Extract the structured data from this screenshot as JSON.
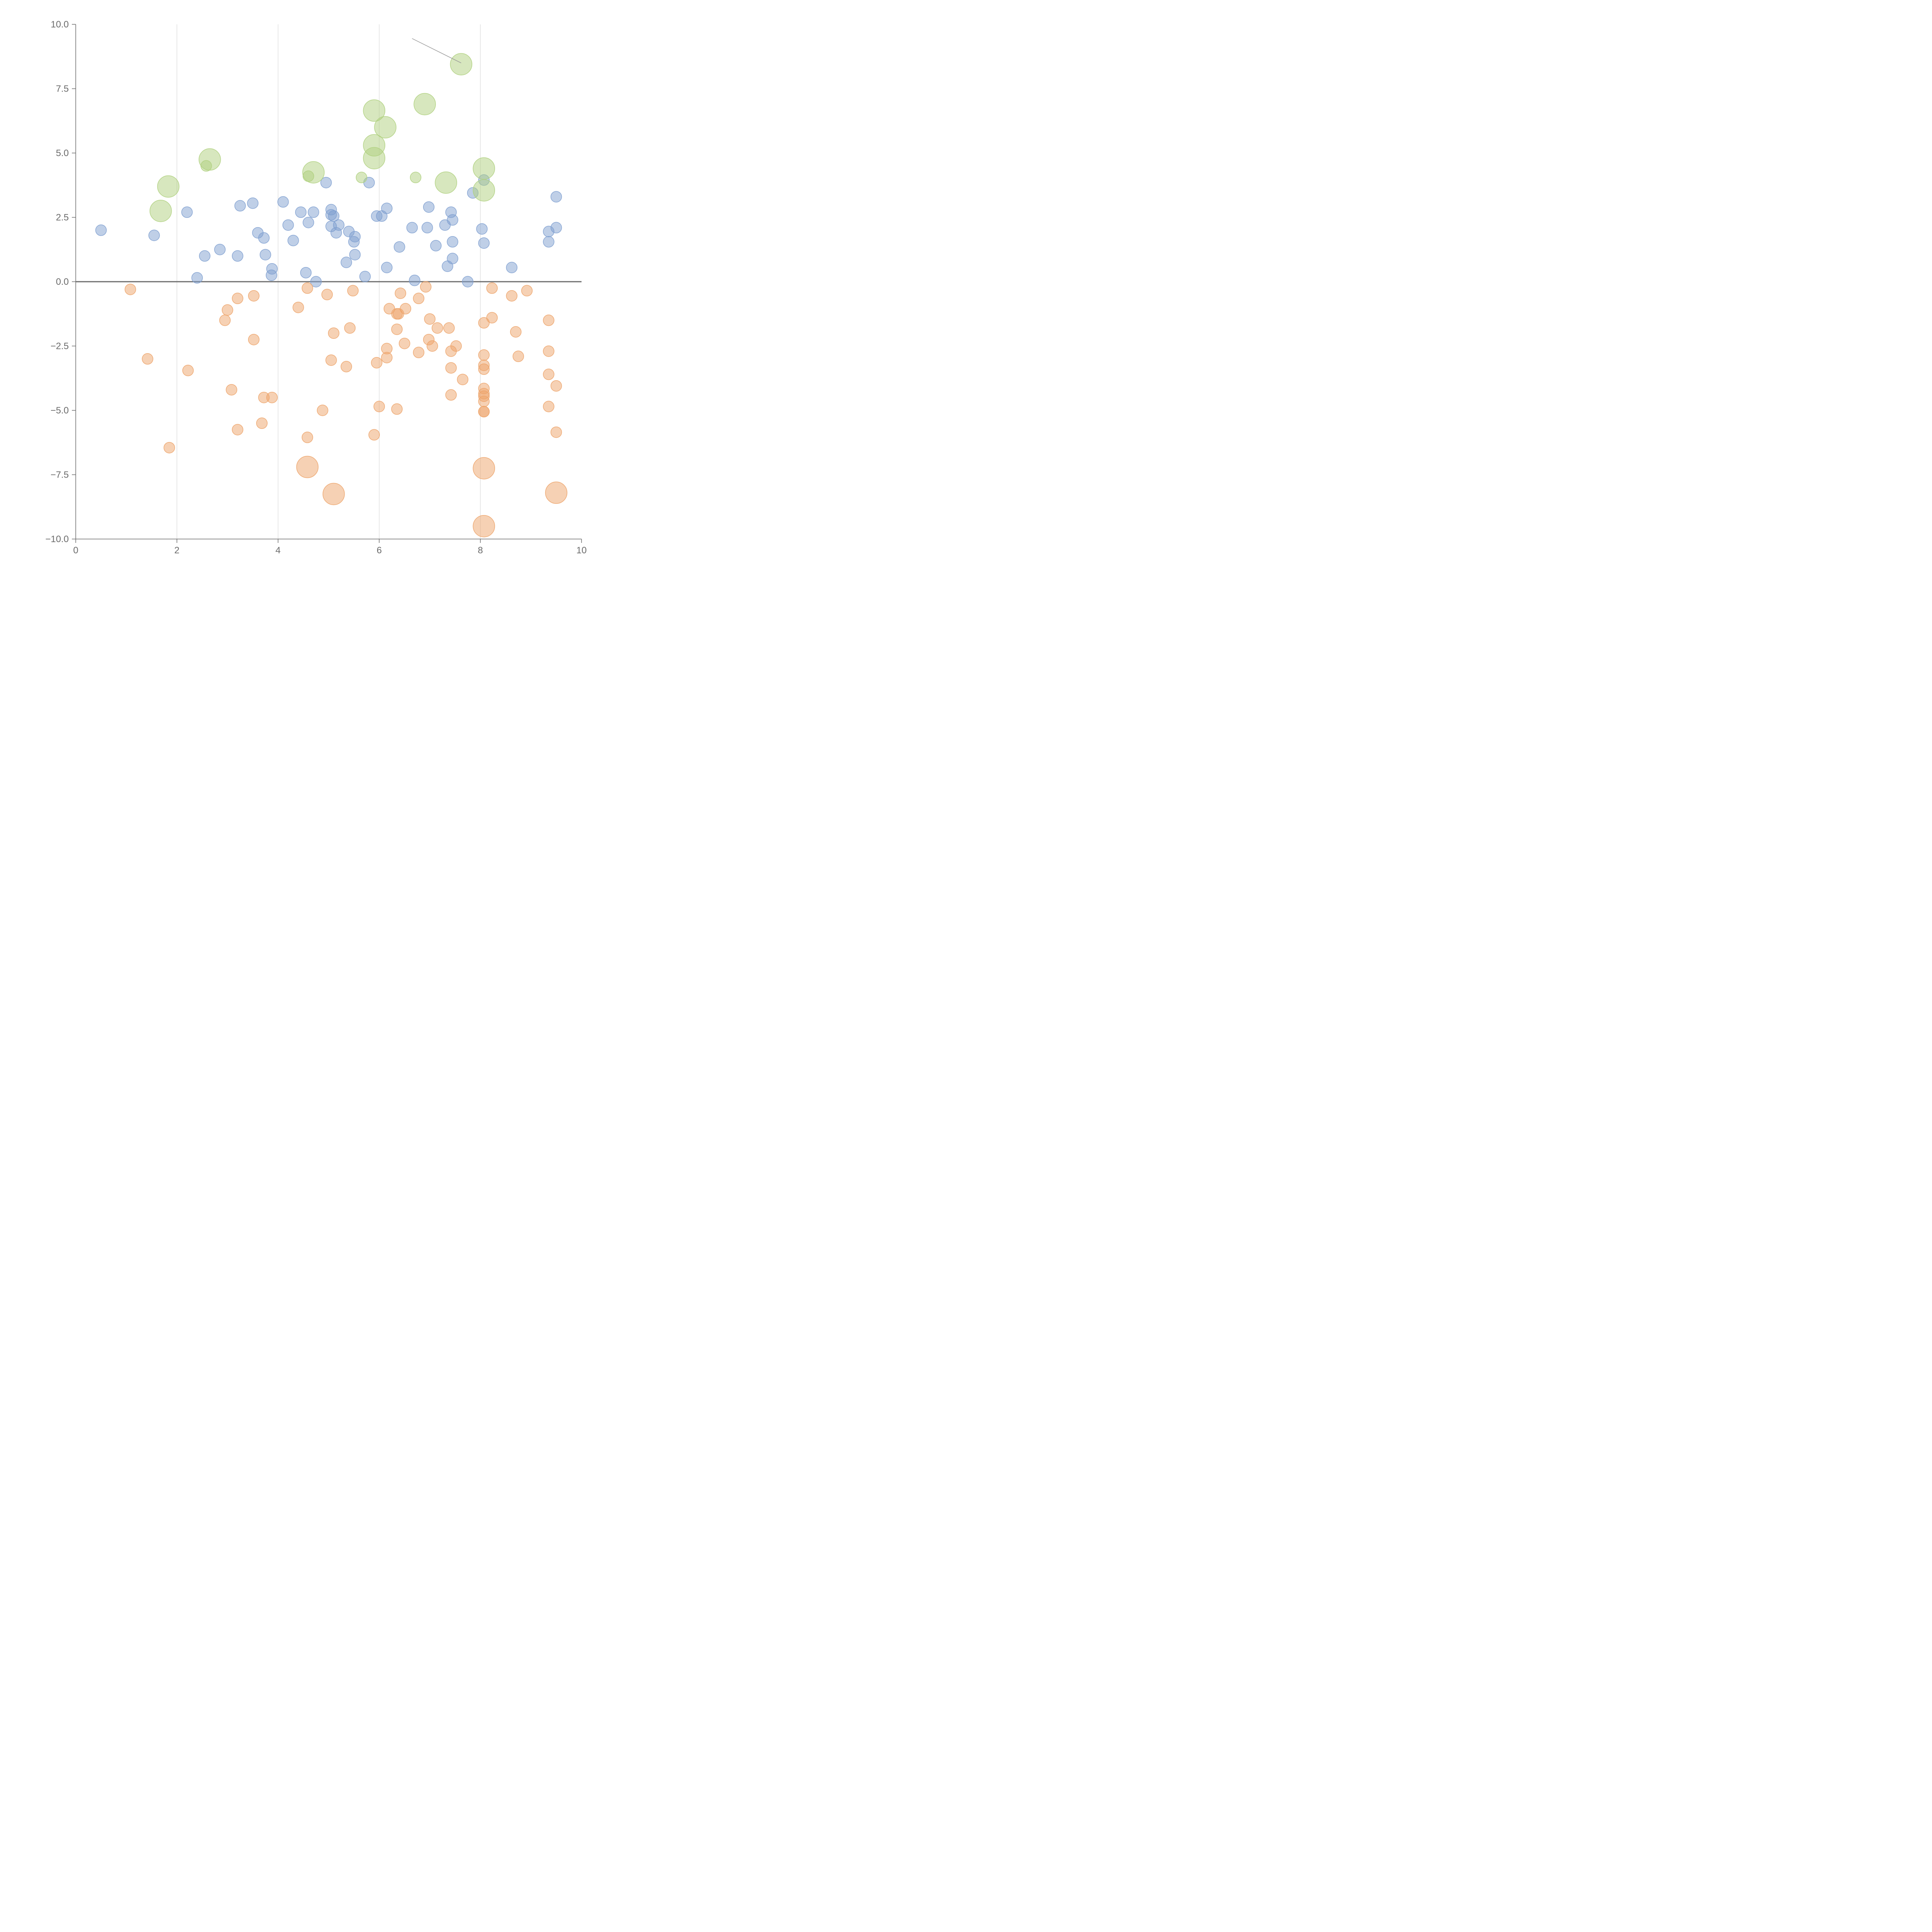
{
  "chart_data": {
    "type": "scatter",
    "title": "",
    "xlabel": "",
    "ylabel": "",
    "xlim": [
      0,
      10
    ],
    "ylim": [
      -10,
      10
    ],
    "x_ticks": [
      "0",
      "2",
      "4",
      "6",
      "8",
      "10"
    ],
    "y_ticks": [
      "10.0",
      "7.5",
      "5.0",
      "2.5",
      "0.0",
      "−2.5",
      "−5.0",
      "−7.5",
      "−10.0"
    ],
    "x_tick_values": [
      0,
      2,
      4,
      6,
      8,
      10
    ],
    "y_tick_values": [
      10,
      7.5,
      5,
      2.5,
      0,
      -2.5,
      -5,
      -7.5,
      -10
    ],
    "vertical_grid": [
      2,
      4,
      6,
      8
    ],
    "zero_line": 0,
    "colors": {
      "blue": "#7fa0d0",
      "orange": "#eda46a",
      "green": "#afd07e"
    },
    "series": [
      {
        "name": "blue",
        "color": "#7fa0d0",
        "points": [
          [
            0.5,
            2.0,
            1
          ],
          [
            1.55,
            1.8,
            1
          ],
          [
            2.2,
            2.7,
            1
          ],
          [
            2.4,
            0.15,
            1
          ],
          [
            2.55,
            1.0,
            1
          ],
          [
            2.85,
            1.25,
            1
          ],
          [
            3.2,
            1.0,
            1
          ],
          [
            3.25,
            2.95,
            1
          ],
          [
            3.5,
            3.05,
            1
          ],
          [
            3.6,
            1.9,
            1
          ],
          [
            3.72,
            1.7,
            1
          ],
          [
            3.75,
            1.05,
            1
          ],
          [
            3.88,
            0.5,
            1
          ],
          [
            3.87,
            0.25,
            1
          ],
          [
            4.1,
            3.1,
            1
          ],
          [
            4.2,
            2.2,
            1
          ],
          [
            4.3,
            1.6,
            1
          ],
          [
            4.45,
            2.7,
            1
          ],
          [
            4.6,
            2.3,
            1
          ],
          [
            4.55,
            0.35,
            1
          ],
          [
            4.7,
            2.7,
            1
          ],
          [
            4.75,
            0.0,
            1
          ],
          [
            4.95,
            3.85,
            1
          ],
          [
            5.05,
            2.8,
            1
          ],
          [
            5.05,
            2.6,
            1
          ],
          [
            5.1,
            2.55,
            1
          ],
          [
            5.05,
            2.15,
            1
          ],
          [
            5.15,
            1.9,
            1
          ],
          [
            5.2,
            2.2,
            1
          ],
          [
            5.4,
            1.95,
            1
          ],
          [
            5.35,
            0.75,
            1
          ],
          [
            5.5,
            1.55,
            1
          ],
          [
            5.52,
            1.75,
            1
          ],
          [
            5.52,
            1.05,
            1
          ],
          [
            5.72,
            0.2,
            1
          ],
          [
            5.8,
            3.85,
            1
          ],
          [
            5.95,
            2.55,
            1
          ],
          [
            6.05,
            2.55,
            1
          ],
          [
            6.15,
            2.85,
            1
          ],
          [
            6.15,
            0.55,
            1
          ],
          [
            6.4,
            1.35,
            1
          ],
          [
            6.65,
            2.1,
            1
          ],
          [
            6.7,
            0.05,
            1
          ],
          [
            6.95,
            2.1,
            1
          ],
          [
            6.98,
            2.9,
            1
          ],
          [
            7.12,
            1.4,
            1
          ],
          [
            7.3,
            2.2,
            1
          ],
          [
            7.35,
            0.6,
            1
          ],
          [
            7.42,
            2.7,
            1
          ],
          [
            7.45,
            2.4,
            1
          ],
          [
            7.45,
            1.55,
            1
          ],
          [
            7.45,
            0.9,
            1
          ],
          [
            7.75,
            0.0,
            1
          ],
          [
            7.85,
            3.45,
            1
          ],
          [
            8.03,
            2.05,
            1
          ],
          [
            8.07,
            1.5,
            1
          ],
          [
            8.07,
            3.95,
            1
          ],
          [
            8.62,
            0.55,
            1
          ],
          [
            9.35,
            1.95,
            1
          ],
          [
            9.35,
            1.55,
            1
          ],
          [
            9.5,
            3.3,
            1
          ],
          [
            9.5,
            2.1,
            1
          ]
        ]
      },
      {
        "name": "orange",
        "color": "#eda46a",
        "points": [
          [
            1.08,
            -0.3,
            1
          ],
          [
            1.42,
            -3.0,
            1
          ],
          [
            1.85,
            -6.45,
            1
          ],
          [
            2.22,
            -3.45,
            1
          ],
          [
            2.95,
            -1.5,
            1
          ],
          [
            3.0,
            -1.1,
            1
          ],
          [
            3.08,
            -4.2,
            1
          ],
          [
            3.2,
            -0.65,
            1
          ],
          [
            3.2,
            -5.75,
            1
          ],
          [
            3.52,
            -0.55,
            1
          ],
          [
            3.52,
            -2.25,
            1
          ],
          [
            3.68,
            -5.5,
            1
          ],
          [
            3.72,
            -4.5,
            1
          ],
          [
            3.88,
            -4.5,
            1
          ],
          [
            4.4,
            -1.0,
            1
          ],
          [
            4.58,
            -0.25,
            1
          ],
          [
            4.58,
            -6.05,
            1
          ],
          [
            4.58,
            -7.2,
            2
          ],
          [
            4.88,
            -5.0,
            1
          ],
          [
            4.97,
            -0.5,
            1
          ],
          [
            5.05,
            -3.05,
            1
          ],
          [
            5.1,
            -2.0,
            1
          ],
          [
            5.1,
            -8.25,
            2
          ],
          [
            5.35,
            -3.3,
            1
          ],
          [
            5.42,
            -1.8,
            1
          ],
          [
            5.48,
            -0.35,
            1
          ],
          [
            5.9,
            -5.95,
            1
          ],
          [
            5.95,
            -3.15,
            1
          ],
          [
            6.0,
            -4.85,
            1
          ],
          [
            6.15,
            -2.6,
            1
          ],
          [
            6.15,
            -2.95,
            1
          ],
          [
            6.2,
            -1.05,
            1
          ],
          [
            6.35,
            -1.25,
            1
          ],
          [
            6.38,
            -1.25,
            1
          ],
          [
            6.35,
            -1.85,
            1
          ],
          [
            6.35,
            -4.95,
            1
          ],
          [
            6.42,
            -0.45,
            1
          ],
          [
            6.52,
            -1.05,
            1
          ],
          [
            6.5,
            -2.4,
            1
          ],
          [
            6.78,
            -0.65,
            1
          ],
          [
            6.78,
            -2.75,
            1
          ],
          [
            6.92,
            -0.2,
            1
          ],
          [
            7.0,
            -1.45,
            1
          ],
          [
            6.98,
            -2.25,
            1
          ],
          [
            7.05,
            -2.5,
            1
          ],
          [
            7.15,
            -1.8,
            1
          ],
          [
            7.38,
            -1.8,
            1
          ],
          [
            7.42,
            -2.7,
            1
          ],
          [
            7.42,
            -3.35,
            1
          ],
          [
            7.42,
            -4.4,
            1
          ],
          [
            7.52,
            -2.5,
            1
          ],
          [
            7.65,
            -3.8,
            1
          ],
          [
            8.07,
            -1.6,
            1
          ],
          [
            8.07,
            -2.85,
            1
          ],
          [
            8.07,
            -3.25,
            1
          ],
          [
            8.07,
            -3.4,
            1
          ],
          [
            8.07,
            -4.15,
            1
          ],
          [
            8.07,
            -4.35,
            1
          ],
          [
            8.07,
            -4.45,
            1
          ],
          [
            8.07,
            -4.65,
            1
          ],
          [
            8.07,
            -5.05,
            1
          ],
          [
            8.07,
            -5.05,
            1
          ],
          [
            8.07,
            -7.25,
            2
          ],
          [
            8.07,
            -9.5,
            2
          ],
          [
            8.23,
            -0.25,
            1
          ],
          [
            8.23,
            -1.4,
            1
          ],
          [
            8.62,
            -0.55,
            1
          ],
          [
            8.7,
            -1.95,
            1
          ],
          [
            8.75,
            -2.9,
            1
          ],
          [
            8.92,
            -0.35,
            1
          ],
          [
            9.35,
            -1.5,
            1
          ],
          [
            9.35,
            -2.7,
            1
          ],
          [
            9.35,
            -3.6,
            1
          ],
          [
            9.35,
            -4.85,
            1
          ],
          [
            9.5,
            -4.05,
            1
          ],
          [
            9.5,
            -5.85,
            1
          ],
          [
            9.5,
            -8.2,
            2
          ]
        ]
      },
      {
        "name": "green",
        "color": "#afd07e",
        "points": [
          [
            1.68,
            2.75,
            2
          ],
          [
            1.83,
            3.7,
            2
          ],
          [
            2.58,
            4.5,
            1
          ],
          [
            2.65,
            4.75,
            2
          ],
          [
            4.6,
            4.1,
            1
          ],
          [
            4.7,
            4.25,
            2
          ],
          [
            5.65,
            4.05,
            1
          ],
          [
            5.9,
            4.8,
            2
          ],
          [
            5.9,
            5.3,
            2
          ],
          [
            5.9,
            6.65,
            2
          ],
          [
            6.12,
            6.0,
            2
          ],
          [
            6.72,
            4.05,
            1
          ],
          [
            6.9,
            6.9,
            2
          ],
          [
            7.32,
            3.85,
            2
          ],
          [
            7.62,
            8.45,
            2
          ],
          [
            8.07,
            3.55,
            2
          ],
          [
            8.07,
            4.4,
            2
          ]
        ]
      }
    ],
    "annotation_leader": {
      "from": [
        6.65,
        9.45
      ],
      "to": [
        7.62,
        8.5
      ]
    }
  }
}
